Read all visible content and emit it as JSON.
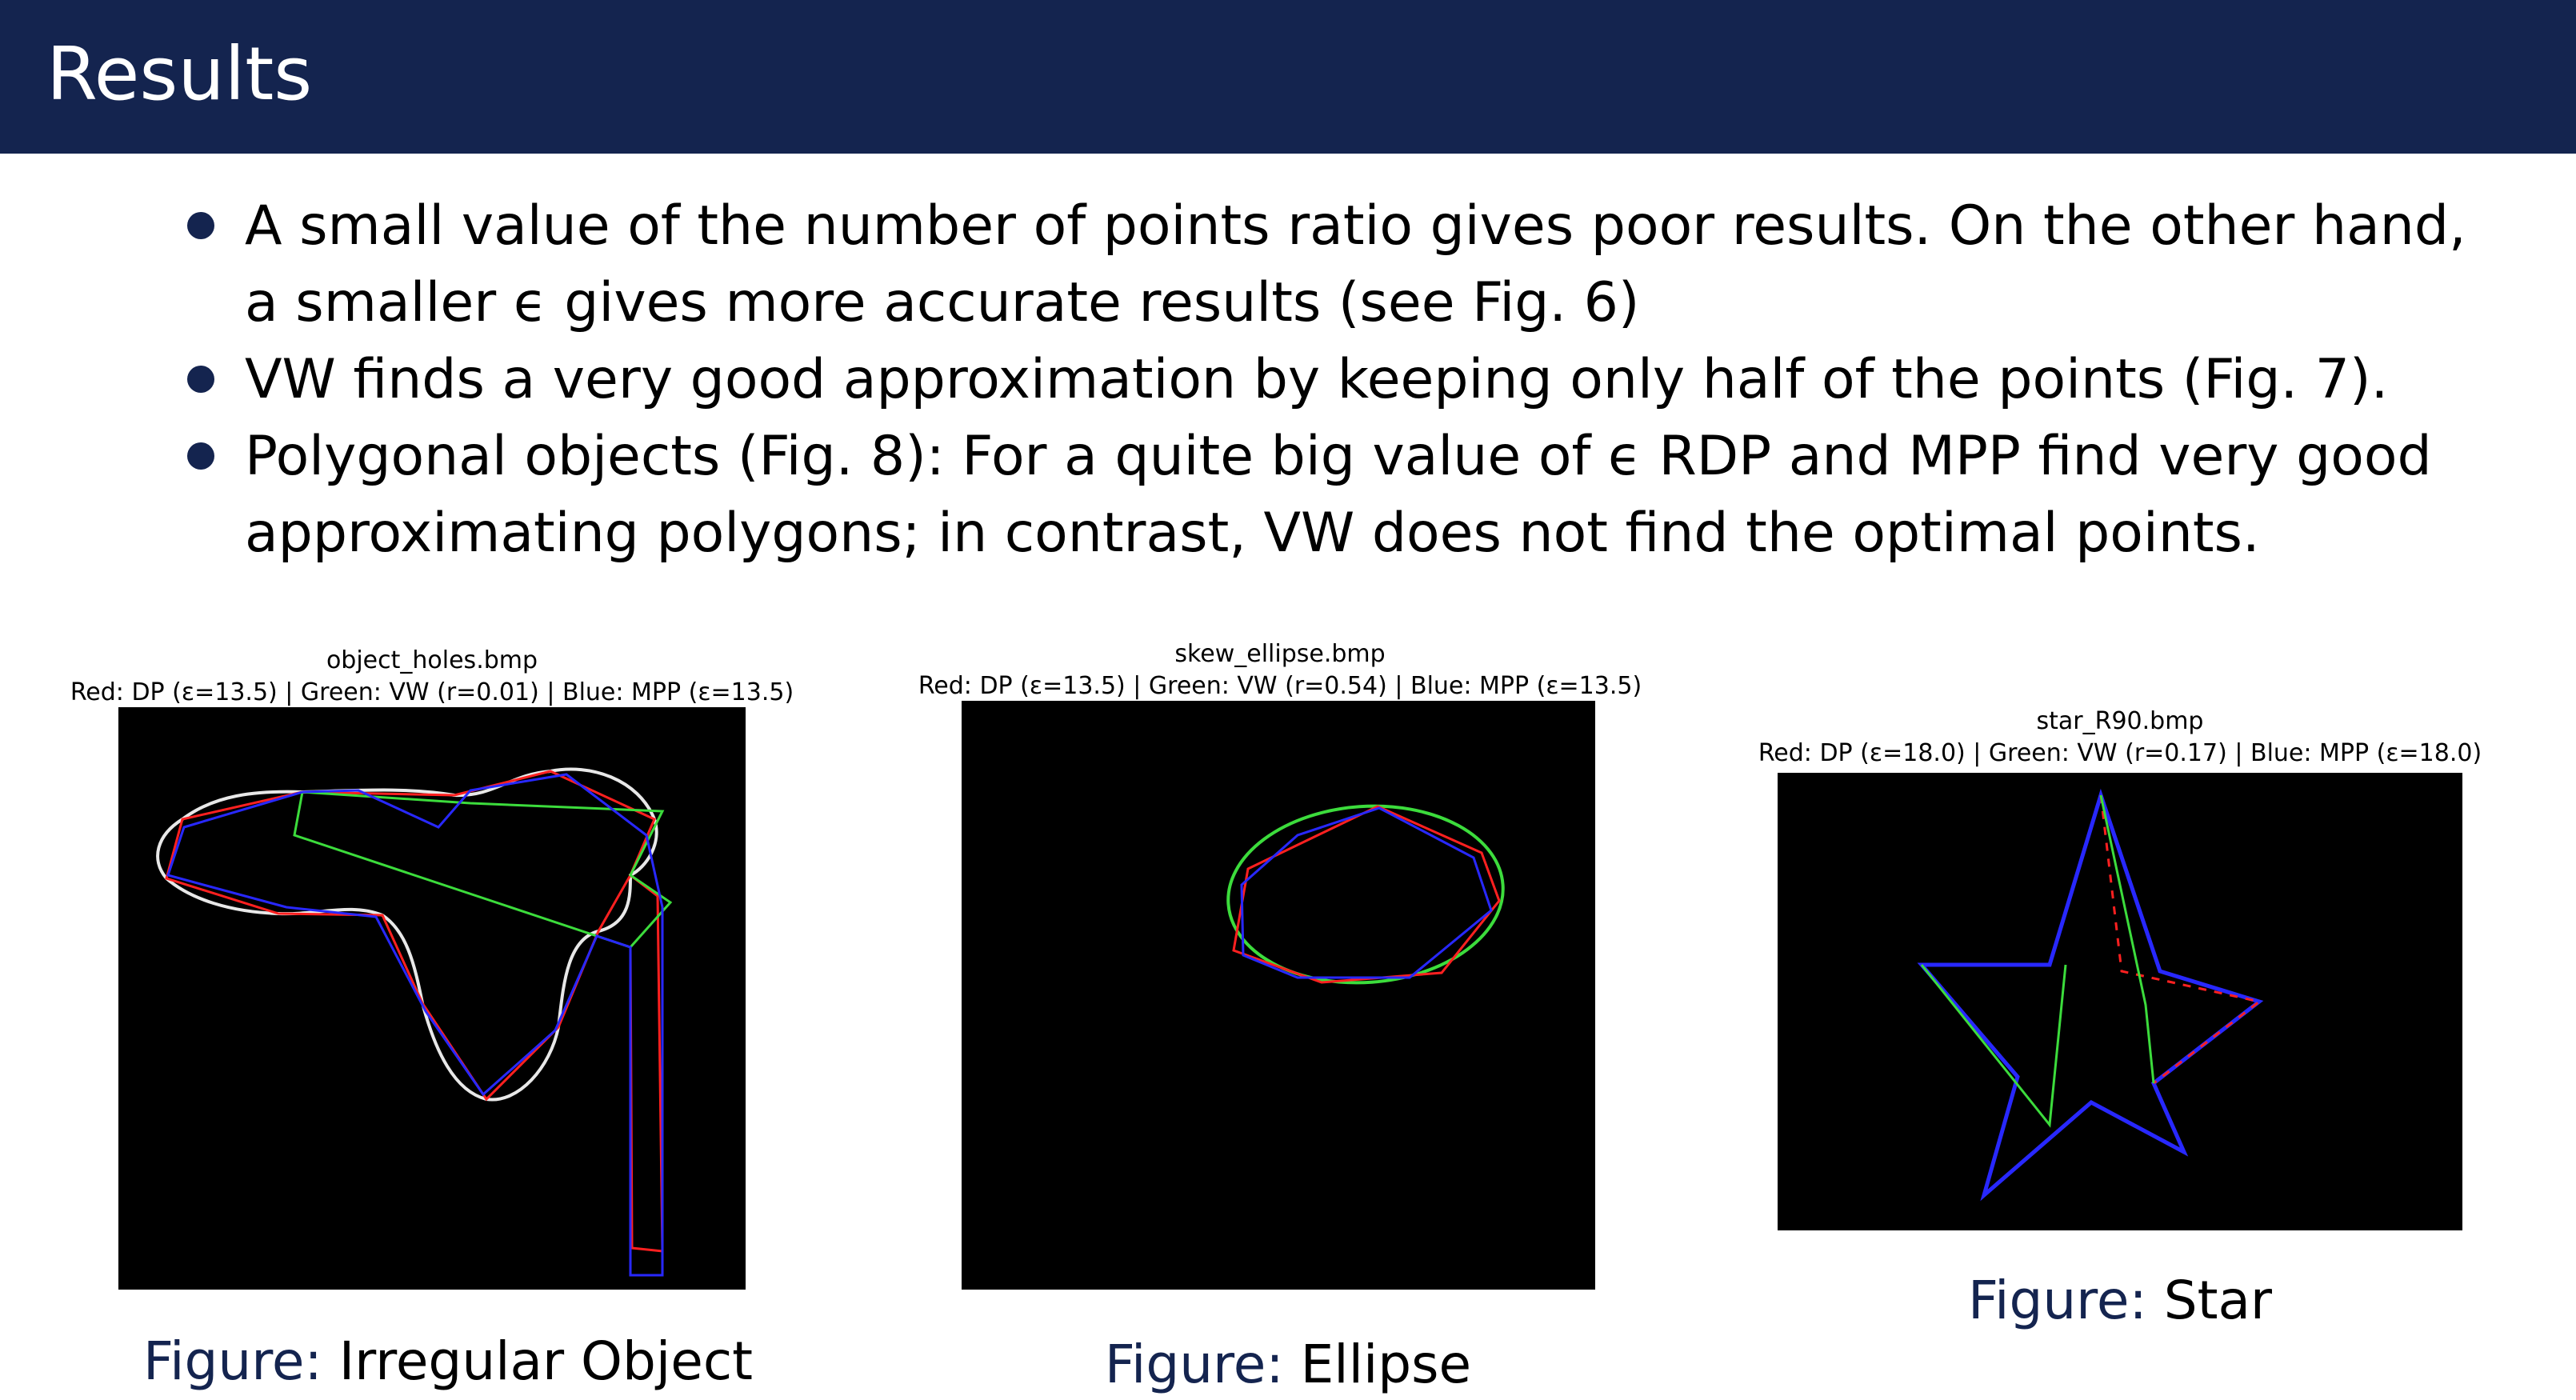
{
  "slide": {
    "title": "Results"
  },
  "bullets": [
    "A small value of the number of points ratio gives poor results. On the other hand, a smaller ϵ gives more accurate results (see Fig. 6)",
    "VW finds a very good approximation by keeping only half of the points (Fig. 7).",
    "Polygonal objects (Fig. 8): For a quite big value of ϵ RDP and MPP find very good approximating polygons; in contrast, VW does not find the optimal points."
  ],
  "figures": [
    {
      "file": "object_holes.bmp",
      "legend": "Red: DP (ε=13.5) | Green: VW (r=0.01) | Blue: MPP (ε=13.5)",
      "caption_prefix": "Figure:",
      "caption": "Irregular Object"
    },
    {
      "file": "skew_ellipse.bmp",
      "legend": "Red: DP (ε=13.5) | Green: VW (r=0.54) | Blue: MPP (ε=13.5)",
      "caption_prefix": "Figure:",
      "caption": "Ellipse"
    },
    {
      "file": "star_R90.bmp",
      "legend": "Red: DP (ε=18.0) | Green: VW (r=0.17) | Blue: MPP (ε=18.0)",
      "caption_prefix": "Figure:",
      "caption": "Star"
    }
  ],
  "colors": {
    "header_bg": "#14244f",
    "dp": "#ff2020",
    "vw": "#3cdc3c",
    "mpp": "#2828ff",
    "original": "#e8e8e8"
  }
}
